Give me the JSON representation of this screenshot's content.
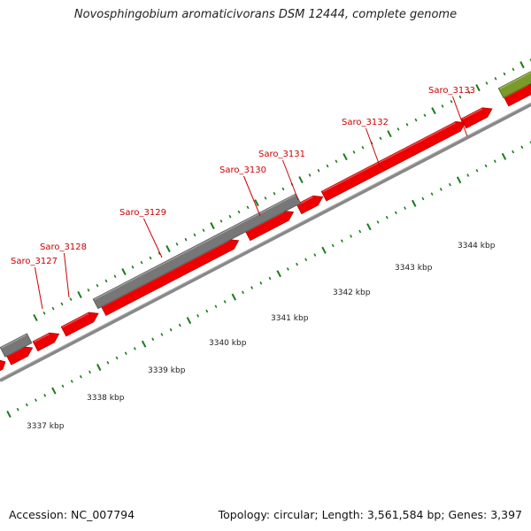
{
  "title": "Novosphingobium aromaticivorans DSM 12444, complete genome",
  "footer": {
    "accession": "Accession: NC_007794",
    "summary": "Topology: circular; Length: 3,561,584 bp; Genes: 3,397"
  },
  "colors": {
    "gene": "#ee0000",
    "gene_dark": "#b80000",
    "gray_feature": "#777777",
    "olive_feature": "#7a9a2a",
    "backbone": "#888888",
    "ticks": "#1a7a1a",
    "label_text": "#cc0000"
  },
  "gene_labels": [
    "Saro_3127",
    "Saro_3128",
    "Saro_3129",
    "Saro_3130",
    "Saro_3131",
    "Saro_3132",
    "Saro_3133"
  ],
  "kbp_labels": [
    "3337 kbp",
    "3338 kbp",
    "3339 kbp",
    "3340 kbp",
    "3341 kbp",
    "3342 kbp",
    "3343 kbp",
    "3344 kbp"
  ]
}
